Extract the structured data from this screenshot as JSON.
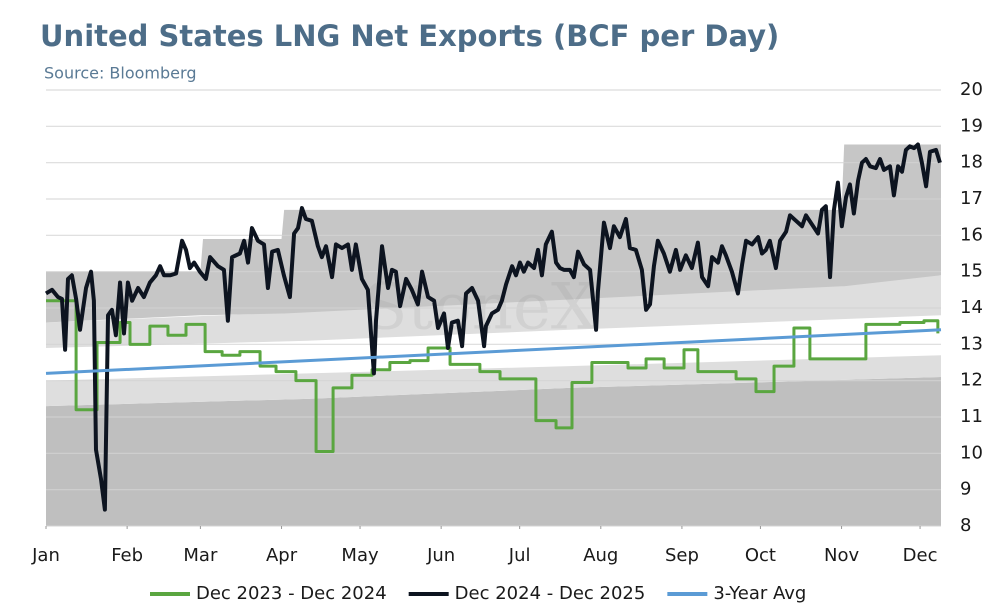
{
  "chart_data": {
    "type": "line",
    "title": "United States LNG Net Exports (BCF per Day)",
    "subtitle": "Source: Bloomberg",
    "watermark": "StoneX",
    "xlim": [
      0,
      342
    ],
    "xticks": [
      {
        "value": 0,
        "label": "Jan"
      },
      {
        "value": 31,
        "label": "Feb"
      },
      {
        "value": 59,
        "label": "Mar"
      },
      {
        "value": 90,
        "label": "Apr"
      },
      {
        "value": 120,
        "label": "May"
      },
      {
        "value": 151,
        "label": "Jun"
      },
      {
        "value": 181,
        "label": "Jul"
      },
      {
        "value": 212,
        "label": "Aug"
      },
      {
        "value": 243,
        "label": "Sep"
      },
      {
        "value": 273,
        "label": "Oct"
      },
      {
        "value": 304,
        "label": "Nov"
      },
      {
        "value": 334,
        "label": "Dec"
      }
    ],
    "ylim": [
      8,
      20
    ],
    "yticks": [
      8,
      9,
      10,
      11,
      12,
      13,
      14,
      15,
      16,
      17,
      18,
      19,
      20
    ],
    "grid": true,
    "legend": "bottom",
    "bands": [
      {
        "color": "#bfbfbf",
        "x": [
          0,
          100,
          200,
          342
        ],
        "lower": [
          8,
          8,
          8,
          8
        ],
        "upper": [
          11.3,
          11.5,
          11.8,
          12.1
        ]
      },
      {
        "color": "#dedede",
        "x": [
          0,
          100,
          200,
          342
        ],
        "lower": [
          11.3,
          11.5,
          11.8,
          12.1
        ],
        "upper": [
          12.0,
          12.2,
          12.4,
          12.7
        ]
      },
      {
        "color": "#dedede",
        "x": [
          0,
          100,
          200,
          342
        ],
        "lower": [
          12.9,
          13.1,
          13.4,
          13.8
        ],
        "upper": [
          13.6,
          13.9,
          14.3,
          14.9
        ]
      },
      {
        "color": "#c6c6c6",
        "x": [
          0,
          59,
          60,
          90,
          91,
          304,
          305,
          342
        ],
        "lower": [
          13.6,
          13.8,
          13.8,
          13.85,
          13.85,
          14.6,
          14.6,
          14.9
        ],
        "upper": [
          15.0,
          15.0,
          15.9,
          15.9,
          16.7,
          16.7,
          18.5,
          18.5
        ]
      }
    ],
    "series": [
      {
        "name": "Dec 2023 - Dec 2024",
        "color": "#5aa640",
        "step": true,
        "x": [
          0,
          11.5,
          19.5,
          28.3,
          32.1,
          39.7,
          46.6,
          53.5,
          60.8,
          67.3,
          74.1,
          81.8,
          87.9,
          95.5,
          103.2,
          109.7,
          116.9,
          124.6,
          131.4,
          139.1,
          146,
          154.4,
          165.8,
          173.5,
          187.2,
          194.9,
          201,
          208.6,
          222.4,
          229.3,
          236.2,
          243.8,
          249.1,
          263.7,
          271.3,
          278.2,
          285.8,
          291.9,
          313.3,
          326.3,
          335.5,
          340.8
        ],
        "values": [
          14.2,
          11.2,
          13.05,
          13.6,
          13.0,
          13.5,
          13.25,
          13.55,
          12.8,
          12.7,
          12.8,
          12.4,
          12.25,
          12.0,
          10.05,
          11.8,
          12.15,
          12.3,
          12.5,
          12.55,
          12.9,
          12.45,
          12.25,
          12.05,
          10.9,
          10.7,
          11.95,
          12.5,
          12.35,
          12.6,
          12.35,
          12.85,
          12.25,
          12.05,
          11.7,
          12.4,
          13.45,
          12.6,
          13.55,
          13.6,
          13.65,
          13.3
        ]
      },
      {
        "name": "Dec 2024 - Dec 2025",
        "color": "#0d1420",
        "x": [
          0,
          2.3,
          4.6,
          6.1,
          7.3,
          8.4,
          9.9,
          11.5,
          13,
          15.3,
          17.2,
          18.3,
          19.1,
          21,
          22.5,
          23.7,
          25.2,
          26.7,
          28.3,
          29.8,
          31.3,
          32.9,
          35.2,
          37.4,
          39.7,
          42,
          43.6,
          45.1,
          47.4,
          49.7,
          52,
          53.5,
          55,
          56.6,
          58.8,
          61.1,
          62.7,
          65.7,
          68,
          69.5,
          71.1,
          74.1,
          75.7,
          77.2,
          78.7,
          81,
          83.3,
          84.8,
          86.4,
          88.6,
          90.9,
          93.2,
          94.8,
          96.3,
          97.8,
          99.3,
          101.6,
          103.9,
          105.4,
          107,
          109.3,
          110.8,
          113.1,
          115.4,
          116.9,
          118.4,
          120.7,
          123,
          125.3,
          126.1,
          128.4,
          130.7,
          132.2,
          133.7,
          135.3,
          137.6,
          139.8,
          142.1,
          143.7,
          146,
          148.3,
          149.8,
          152.1,
          153.6,
          155.1,
          157.4,
          159,
          160.5,
          162.8,
          165.1,
          167.4,
          168.1,
          170.4,
          172.7,
          174.2,
          175.8,
          178.1,
          179.6,
          181.1,
          182.6,
          184.2,
          186.5,
          188,
          189.5,
          191,
          193.3,
          194.9,
          196.4,
          197.9,
          200.2,
          201.7,
          203.3,
          205.6,
          207.9,
          210.2,
          210.9,
          213.2,
          215.5,
          217,
          219.3,
          221.6,
          223.1,
          225.4,
          227.7,
          229.3,
          230.8,
          232.3,
          233.8,
          236.1,
          238.4,
          240.7,
          242.3,
          244.5,
          246.8,
          249.1,
          250.7,
          253,
          254.5,
          256.8,
          258.3,
          259.8,
          262.1,
          264.4,
          266,
          267.5,
          269.8,
          272.1,
          273.6,
          275.1,
          276.6,
          278.9,
          280.5,
          282.8,
          284.3,
          286.6,
          288.9,
          290.4,
          292.7,
          295,
          296.5,
          298,
          299.6,
          301.1,
          302.6,
          304.1,
          305.7,
          307.2,
          308.7,
          310.3,
          311.8,
          313.3,
          314.9,
          317.1,
          318.7,
          320.2,
          322.5,
          324,
          325.6,
          327.1,
          328.6,
          330.1,
          331.7,
          333.2,
          334.7,
          336.3,
          337.8,
          340.1,
          341.6
        ],
        "values": [
          14.4,
          14.5,
          14.3,
          14.25,
          12.85,
          14.8,
          14.9,
          14.25,
          13.4,
          14.55,
          15.0,
          14.2,
          10.1,
          9.3,
          8.45,
          13.8,
          13.95,
          13.25,
          14.7,
          13.3,
          14.7,
          14.2,
          14.55,
          14.3,
          14.7,
          14.9,
          15.15,
          14.9,
          14.9,
          14.95,
          15.85,
          15.6,
          15.1,
          15.25,
          15.0,
          14.8,
          15.4,
          15.15,
          15.05,
          13.65,
          15.4,
          15.5,
          15.85,
          15.25,
          16.2,
          15.85,
          15.75,
          14.55,
          15.55,
          15.6,
          14.9,
          14.3,
          16.05,
          16.2,
          16.75,
          16.45,
          16.4,
          15.7,
          15.4,
          15.7,
          14.85,
          15.75,
          15.65,
          15.75,
          15.05,
          15.75,
          14.8,
          14.5,
          12.2,
          13.65,
          15.7,
          14.55,
          15.05,
          15.0,
          14.05,
          14.8,
          14.5,
          14.1,
          15.0,
          14.3,
          14.2,
          13.45,
          13.85,
          12.9,
          13.6,
          13.65,
          12.95,
          14.4,
          14.55,
          14.2,
          12.95,
          13.5,
          13.85,
          13.95,
          14.2,
          14.65,
          15.15,
          14.9,
          15.25,
          15.0,
          15.25,
          15.1,
          15.6,
          14.9,
          15.75,
          16.1,
          15.25,
          15.1,
          15.05,
          15.05,
          14.85,
          15.55,
          15.2,
          15.05,
          13.4,
          14.45,
          16.35,
          15.65,
          16.25,
          15.95,
          16.45,
          15.65,
          15.6,
          15.05,
          13.95,
          14.1,
          15.15,
          15.85,
          15.5,
          15.0,
          15.6,
          15.05,
          15.45,
          15.1,
          15.8,
          14.85,
          14.6,
          15.4,
          15.25,
          15.7,
          15.45,
          15.0,
          14.4,
          15.2,
          15.85,
          15.75,
          15.95,
          15.5,
          15.6,
          15.85,
          15.1,
          15.85,
          16.1,
          16.55,
          16.4,
          16.25,
          16.55,
          16.3,
          16.05,
          16.7,
          16.8,
          14.85,
          16.7,
          17.45,
          16.25,
          17.05,
          17.4,
          16.6,
          17.5,
          18.0,
          18.1,
          17.9,
          17.85,
          18.1,
          17.8,
          17.9,
          17.1,
          17.9,
          17.75,
          18.35,
          18.45,
          18.4,
          18.5,
          18.0,
          17.35,
          18.3,
          18.35,
          18.0
        ]
      },
      {
        "name": "3-Year Avg",
        "color": "#5b9bd5",
        "x": [
          0,
          342
        ],
        "values": [
          12.2,
          13.4
        ]
      }
    ]
  }
}
